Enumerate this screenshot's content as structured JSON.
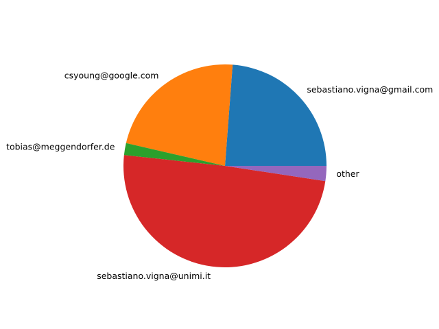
{
  "chart_data": {
    "type": "pie",
    "start_angle_deg": 0,
    "direction": "counterclockwise",
    "slices": [
      {
        "label": "sebastiano.vigna@gmail.com",
        "value": 23.8,
        "color": "#1f77b4"
      },
      {
        "label": "csyoung@google.com",
        "value": 22.6,
        "color": "#ff7f0e"
      },
      {
        "label": "tobias@meggendorfer.de",
        "value": 1.9,
        "color": "#2ca02c"
      },
      {
        "label": "sebastiano.vigna@unimi.it",
        "value": 49.3,
        "color": "#d62728"
      },
      {
        "label": "other",
        "value": 2.4,
        "color": "#9467bd"
      }
    ]
  }
}
